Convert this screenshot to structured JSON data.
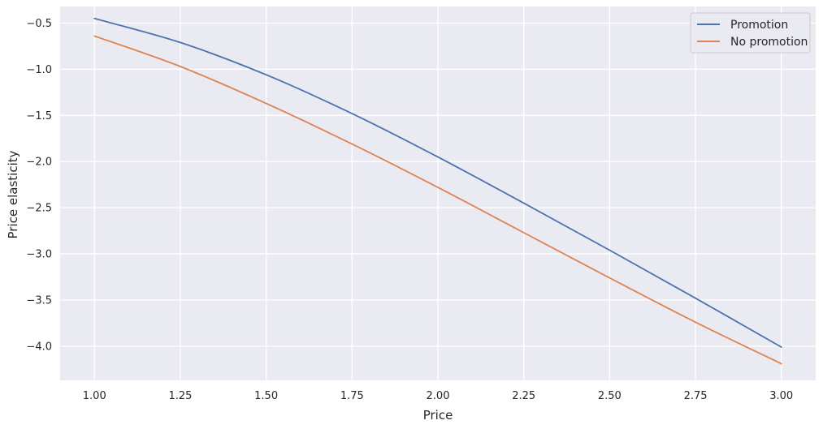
{
  "chart_data": {
    "type": "line",
    "title": "",
    "xlabel": "Price",
    "ylabel": "Price elasticity",
    "xlim": [
      0.9,
      3.1
    ],
    "ylim": [
      -4.37,
      -0.32
    ],
    "x_ticks": [
      1.0,
      1.25,
      1.5,
      1.75,
      2.0,
      2.25,
      2.5,
      2.75,
      3.0
    ],
    "x_tick_labels": [
      "1.00",
      "1.25",
      "1.50",
      "1.75",
      "2.00",
      "2.25",
      "2.50",
      "2.75",
      "3.00"
    ],
    "y_ticks": [
      -0.5,
      -1.0,
      -1.5,
      -2.0,
      -2.5,
      -3.0,
      -3.5,
      -4.0
    ],
    "y_tick_labels": [
      "−0.5",
      "−1.0",
      "−1.5",
      "−2.0",
      "−2.5",
      "−3.0",
      "−3.5",
      "−4.0"
    ],
    "grid": true,
    "legend_position": "top-right",
    "background_color": "#eaeaf2",
    "grid_color": "#ffffff",
    "x": [
      1.0,
      1.25,
      1.5,
      1.75,
      2.0,
      2.25,
      2.5,
      2.75,
      3.0
    ],
    "series": [
      {
        "name": "Promotion",
        "color": "#4c72b0",
        "values": [
          -0.45,
          -0.71,
          -1.06,
          -1.48,
          -1.95,
          -2.45,
          -2.96,
          -3.48,
          -4.01
        ]
      },
      {
        "name": "No promotion",
        "color": "#dd8452",
        "values": [
          -0.64,
          -0.97,
          -1.37,
          -1.81,
          -2.28,
          -2.77,
          -3.26,
          -3.74,
          -4.19
        ]
      }
    ]
  }
}
